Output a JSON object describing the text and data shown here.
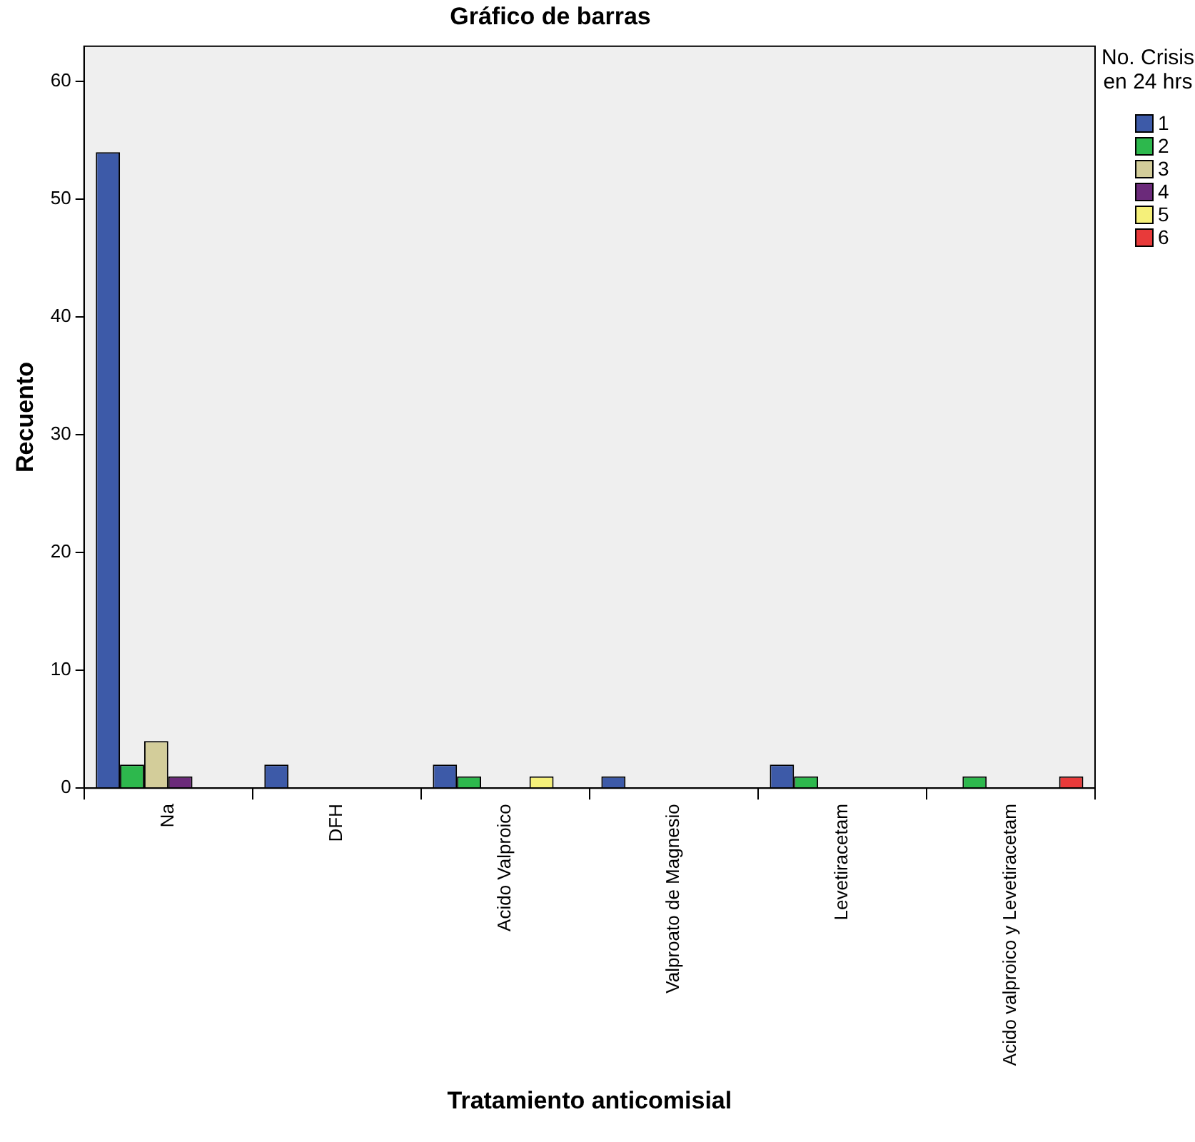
{
  "chart_data": {
    "type": "bar",
    "title": "Gráfico de barras",
    "xlabel": "Tratamiento anticomisial",
    "ylabel": "Recuento",
    "legend_title": "No. Crisis en 24 hrs",
    "legend": "top right",
    "grid": false,
    "categories": [
      "Na",
      "DFH",
      "Acido Valproico",
      "Valproato de Magnesio",
      "Levetiracetam",
      "Acido valproico y Levetiracetam"
    ],
    "ylim": [
      0,
      63
    ],
    "yticks": [
      0,
      10,
      20,
      30,
      40,
      50,
      60
    ],
    "series": [
      {
        "name": "1",
        "color": "#3d5aa8",
        "values": [
          54,
          2,
          2,
          1,
          2,
          null
        ]
      },
      {
        "name": "2",
        "color": "#2db84d",
        "values": [
          2,
          null,
          1,
          null,
          1,
          1
        ]
      },
      {
        "name": "3",
        "color": "#d3cd9a",
        "values": [
          4,
          null,
          null,
          null,
          null,
          null
        ]
      },
      {
        "name": "4",
        "color": "#6b2a7a",
        "values": [
          1,
          null,
          null,
          null,
          null,
          null
        ]
      },
      {
        "name": "5",
        "color": "#f5f07a",
        "values": [
          null,
          null,
          1,
          null,
          null,
          null
        ]
      },
      {
        "name": "6",
        "color": "#e83a3a",
        "values": [
          null,
          null,
          null,
          null,
          null,
          1
        ]
      }
    ]
  }
}
